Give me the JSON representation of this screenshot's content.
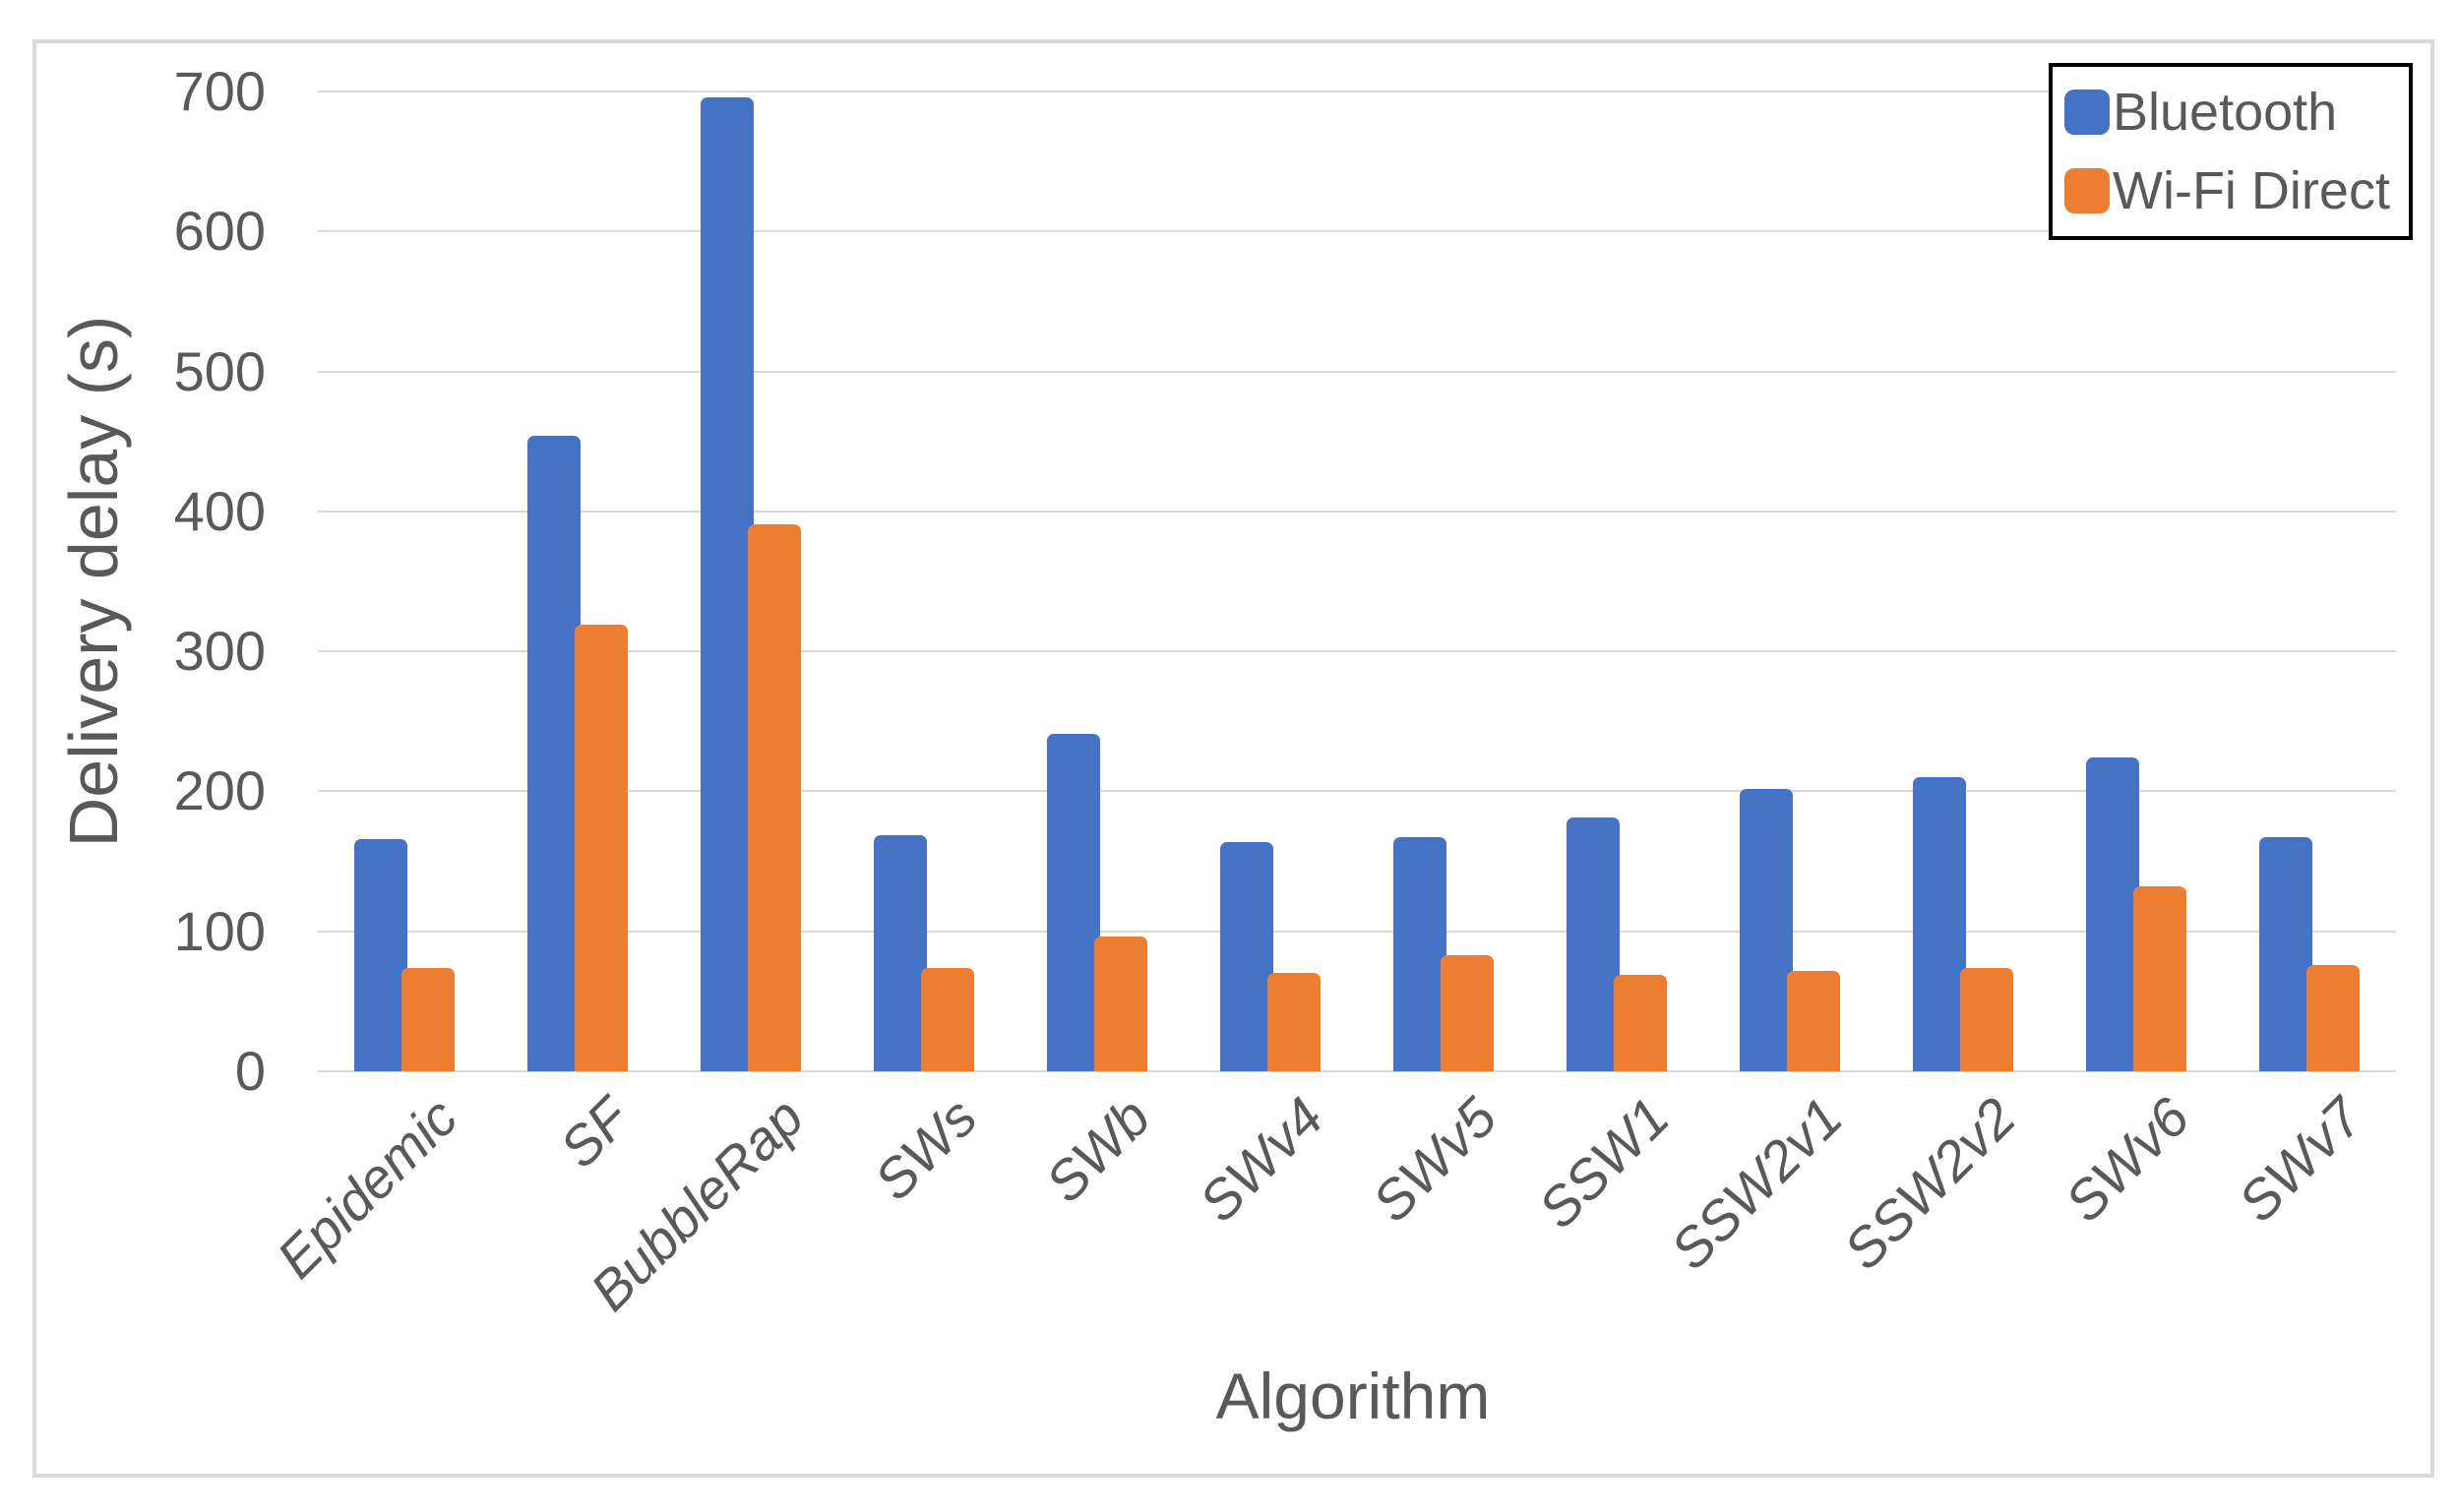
{
  "chart_data": {
    "type": "bar",
    "title": "",
    "xlabel": "Algorithm",
    "ylabel": "Delivery delay (s)",
    "categories": [
      "Epidemic",
      "SF",
      "BubbleRap",
      "SWs",
      "SWb",
      "SWv4",
      "SWv5",
      "SSW1",
      "SSW2v1",
      "SSW2v2",
      "SWv6",
      "SWv7"
    ],
    "series": [
      {
        "name": "Bluetooth",
        "color": "#4472C4",
        "values": [
          166,
          454,
          696,
          169,
          241,
          164,
          167,
          181,
          202,
          210,
          224,
          167
        ]
      },
      {
        "name": "Wi-Fi Direct",
        "color": "#ED7D31",
        "values": [
          74,
          319,
          391,
          74,
          96,
          70,
          83,
          69,
          72,
          74,
          132,
          76
        ]
      }
    ],
    "ylim": [
      0,
      700
    ],
    "yticks": [
      0,
      100,
      200,
      300,
      400,
      500,
      600,
      700
    ],
    "grid": true,
    "legend_position": "top-right"
  },
  "colors": {
    "text": "#595959",
    "gridline": "#d9d9d9",
    "chart_border": "#d9d9d9",
    "legend_border": "#000000",
    "background": "#ffffff"
  }
}
